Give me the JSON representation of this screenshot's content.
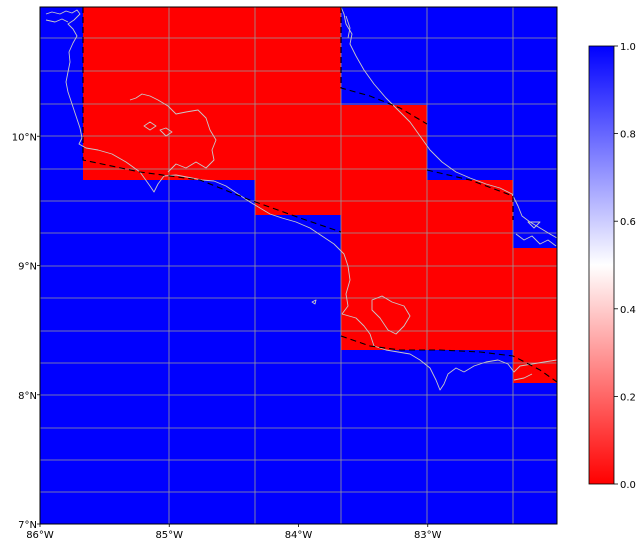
{
  "map": {
    "lon_range": [
      -86,
      -82
    ],
    "lat_range": [
      7,
      11
    ],
    "x_ticks": [
      {
        "value": -86,
        "label": "86°W"
      },
      {
        "value": -85,
        "label": "85°W"
      },
      {
        "value": -84,
        "label": "84°W"
      },
      {
        "value": -83,
        "label": "83°W"
      }
    ],
    "y_ticks": [
      {
        "value": 7,
        "label": "7°N"
      },
      {
        "value": 8,
        "label": "8°N"
      },
      {
        "value": 9,
        "label": "9°N"
      },
      {
        "value": 10,
        "label": "10°N"
      }
    ],
    "colors": {
      "zero": "#ff0000",
      "half": "#ffffff",
      "one": "#0000ff",
      "coastline": "#c8c8c8",
      "gridline": "#9a9a9a",
      "boundary": "#000000"
    },
    "background_value": 1,
    "red_cells_value": 0
  },
  "colorbar": {
    "range": [
      0,
      1
    ],
    "ticks": [
      "0.0",
      "0.2",
      "0.4",
      "0.6",
      "0.8",
      "1.0"
    ]
  }
}
